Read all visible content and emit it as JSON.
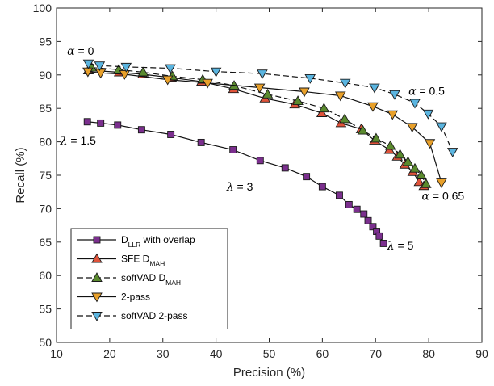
{
  "chart_data": {
    "type": "line",
    "title": "",
    "xlabel": "Precision (%)",
    "ylabel": "Recall (%)",
    "xlim": [
      10,
      90
    ],
    "ylim": [
      50,
      100
    ],
    "xticks": [
      10,
      20,
      30,
      40,
      50,
      60,
      70,
      80,
      90
    ],
    "yticks": [
      50,
      55,
      60,
      65,
      70,
      75,
      80,
      85,
      90,
      95,
      100
    ],
    "grid": false,
    "legend_position": "bottom-left",
    "series": [
      {
        "name": "D_LLR with overlap",
        "label_main": "D",
        "label_sub": "LLR",
        "label_rest": " with overlap",
        "marker": "square",
        "dash": "solid",
        "color": "#7b2f8e",
        "x": [
          15.8,
          18.3,
          21.5,
          26.0,
          31.5,
          37.2,
          43.2,
          48.3,
          53.0,
          57.0,
          60.0,
          63.2,
          65.0,
          66.5,
          67.8,
          68.6,
          69.5,
          70.2,
          70.7,
          71.5
        ],
        "y": [
          83.0,
          82.8,
          82.5,
          81.8,
          81.1,
          79.9,
          78.8,
          77.2,
          76.1,
          74.8,
          73.3,
          72.0,
          70.6,
          69.9,
          69.2,
          68.2,
          67.3,
          66.6,
          65.9,
          64.8
        ]
      },
      {
        "name": "SFE D_MAH",
        "label_main": "SFE D",
        "label_sub": "MAH",
        "label_rest": "",
        "marker": "triangle-up",
        "dash": "solid",
        "color": "#e0533a",
        "x": [
          16.0,
          21.8,
          26.2,
          31.6,
          37.3,
          43.3,
          49.2,
          54.8,
          59.9,
          63.5,
          67.3,
          69.8,
          72.6,
          74.1,
          75.5,
          77.0,
          78.2,
          79.1
        ],
        "y": [
          90.7,
          90.4,
          90.1,
          89.6,
          89.0,
          87.9,
          86.5,
          85.6,
          84.3,
          82.8,
          81.9,
          80.2,
          78.8,
          77.8,
          76.6,
          75.5,
          74.0,
          73.4
        ]
      },
      {
        "name": "softVAD D_MAH",
        "label_main": "softVAD D",
        "label_sub": "MAH",
        "label_rest": "",
        "marker": "triangle-up",
        "dash": "dashed",
        "color": "#5a8a2e",
        "x": [
          16.6,
          21.7,
          26.3,
          31.8,
          37.5,
          43.4,
          49.7,
          55.4,
          60.3,
          64.2,
          67.6,
          70.1,
          72.8,
          74.6,
          76.1,
          77.4,
          78.6,
          79.5
        ],
        "y": [
          91.1,
          90.8,
          90.4,
          89.8,
          89.3,
          88.4,
          87.1,
          86.1,
          85.0,
          83.4,
          81.7,
          80.5,
          79.4,
          78.1,
          77.0,
          76.0,
          75.0,
          73.7
        ]
      },
      {
        "name": "2-pass",
        "label_main": "2-pass",
        "label_sub": "",
        "label_rest": "",
        "marker": "triangle-down",
        "dash": "solid",
        "color": "#e8a02a",
        "x": [
          15.9,
          18.3,
          22.8,
          30.9,
          38.4,
          48.2,
          56.6,
          63.4,
          69.5,
          73.2,
          76.9,
          80.2,
          82.4
        ],
        "y": [
          90.5,
          90.3,
          90.1,
          89.3,
          88.8,
          88.1,
          87.5,
          86.9,
          85.3,
          84.1,
          82.2,
          79.8,
          73.9
        ]
      },
      {
        "name": "softVAD 2-pass",
        "label_main": "softVAD 2-pass",
        "label_sub": "",
        "label_rest": "",
        "marker": "triangle-down",
        "dash": "dashed",
        "color": "#5bb5e0",
        "x": [
          16.0,
          18.1,
          23.1,
          31.4,
          40.0,
          48.7,
          57.7,
          64.3,
          69.8,
          73.6,
          77.4,
          79.9,
          82.4,
          84.5
        ],
        "y": [
          91.7,
          91.4,
          91.2,
          91.0,
          90.5,
          90.2,
          89.5,
          88.8,
          88.1,
          87.1,
          85.8,
          84.2,
          82.3,
          78.5
        ]
      }
    ],
    "annotations": [
      {
        "text": "α = 0",
        "x": 12.0,
        "y": 93.0
      },
      {
        "text": "α = 0.5",
        "x": 76.2,
        "y": 87.0
      },
      {
        "text": "α = 0.65",
        "x": 78.7,
        "y": 71.3
      },
      {
        "text": "λ = 1.5",
        "x": 10.7,
        "y": 79.6
      },
      {
        "text": "λ = 3",
        "x": 42.0,
        "y": 72.7
      },
      {
        "text": "λ = 5",
        "x": 72.2,
        "y": 63.9
      }
    ]
  }
}
